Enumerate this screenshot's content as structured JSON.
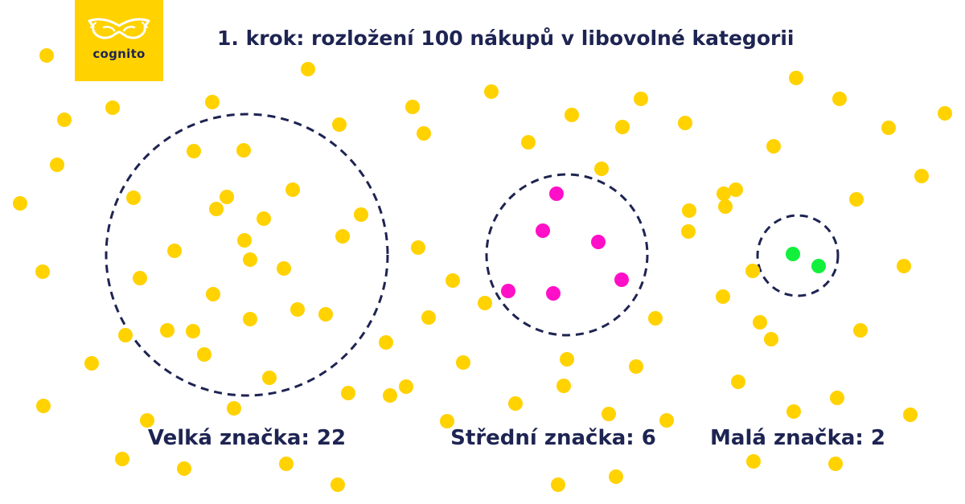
{
  "brand": {
    "logo_text": "cognito",
    "icon": "mask-icon",
    "color": "#ffd200"
  },
  "title": "1. krok: rozložení 100 nákupů v libovolné kategorii",
  "colors": {
    "text": "#1e2452",
    "dot_default": "#ffd200",
    "dot_medium": "#ff0fc8",
    "dot_small": "#12f03c",
    "circle_stroke": "#1e2452"
  },
  "groups": [
    {
      "label": "Velká značka: 22",
      "count": 22,
      "color": "#ffd200"
    },
    {
      "label": "Střední značka: 6",
      "count": 6,
      "color": "#ff0fc8"
    },
    {
      "label": "Malá značka: 2",
      "count": 2,
      "color": "#12f03c"
    }
  ]
}
